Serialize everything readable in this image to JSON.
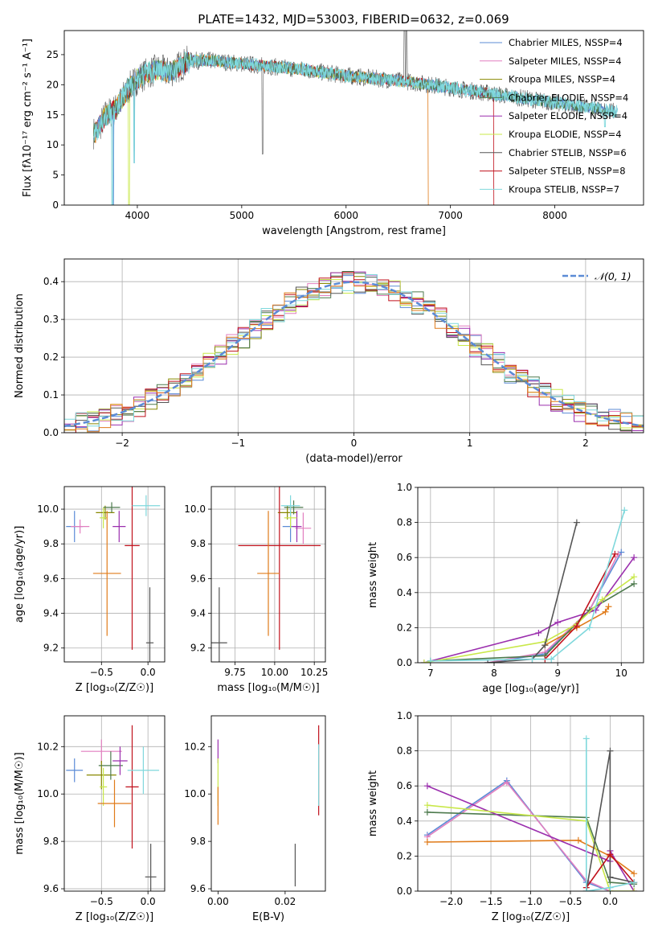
{
  "figure": {
    "title": "PLATE=1432, MJD=53003, FIBERID=0632, z=0.069"
  },
  "colors": {
    "chabrier_miles": "#5b8bd6",
    "salpeter_miles": "#e27fbf",
    "kroupa_miles": "#888800",
    "chabrier_elodie": "#4d7a4d",
    "salpeter_elodie": "#9b2fae",
    "kroupa_elodie": "#c9e84a",
    "chabrier_stelib": "#555555",
    "salpeter_stelib": "#c0111c",
    "kroupa_stelib": "#7fd8dc",
    "orange": "#e07b1a",
    "data": "#777777",
    "normal_curve": "#5b8bd6"
  },
  "chart_data": [
    {
      "id": "spectrum",
      "type": "line",
      "xlabel": "wavelength [Angstrom, rest frame]",
      "ylabel": "Flux [fλ10⁻¹⁷ erg cm⁻² s⁻¹ A⁻¹]",
      "xlim": [
        3300,
        8850
      ],
      "ylim": [
        0,
        29
      ],
      "xticks": [
        4000,
        5000,
        6000,
        7000,
        8000
      ],
      "yticks": [
        0,
        5,
        10,
        15,
        20,
        25
      ],
      "legend_position": "top-right",
      "legend": [
        "Chabrier MILES, NSSP=4",
        "Salpeter MILES, NSSP=4",
        "Kroupa MILES, NSSP=4",
        "Chabrier ELODIE, NSSP=4",
        "Salpeter ELODIE, NSSP=4",
        "Kroupa ELODIE, NSSP=4",
        "Chabrier STELIB, NSSP=6",
        "Salpeter STELIB, NSSP=8",
        "Kroupa STELIB, NSSP=7"
      ],
      "continuum": {
        "x": [
          3600,
          3700,
          3800,
          3900,
          4000,
          4100,
          4200,
          4300,
          4400,
          4500,
          4700,
          5000,
          5300,
          5600,
          6000,
          6300,
          6600,
          7000,
          7400,
          7800,
          8200,
          8600
        ],
        "y": [
          12,
          15,
          16,
          19,
          21,
          22,
          22.5,
          22,
          23,
          24,
          24,
          23.5,
          23,
          22.5,
          21.5,
          21,
          20.5,
          19.5,
          18.5,
          17.5,
          16.5,
          15.5
        ]
      }
    },
    {
      "id": "residuals",
      "type": "line",
      "xlabel": "(data-model)/error",
      "ylabel": "Normed distribution",
      "xlim": [
        -2.5,
        2.5
      ],
      "ylim": [
        0,
        0.46
      ],
      "xticks": [
        -2,
        -1,
        0,
        1,
        2
      ],
      "yticks": [
        0.0,
        0.1,
        0.2,
        0.3,
        0.4
      ],
      "grid": true,
      "legend_position": "top-right",
      "legend": [
        "𝒩(0, 1)"
      ],
      "bin_width": 0.1
    },
    {
      "id": "age_vs_Z",
      "type": "scatter",
      "xlabel": "Z [log₁₀(Z/Z☉)]",
      "ylabel": "age  [log₁₀(age/yr)]",
      "xlim": [
        -0.9,
        0.18
      ],
      "ylim": [
        9.12,
        10.13
      ],
      "xticks": [
        -0.5,
        0.0
      ],
      "yticks": [
        9.2,
        9.4,
        9.6,
        9.8,
        10.0
      ],
      "grid": true,
      "points": [
        {
          "x": -0.79,
          "y": 9.9,
          "xerr": 0.09,
          "yerr": 0.09,
          "c": "chabrier_miles"
        },
        {
          "x": -0.73,
          "y": 9.9,
          "xerr": 0.1,
          "yerr": 0.04,
          "c": "salpeter_miles"
        },
        {
          "x": -0.46,
          "y": 9.98,
          "xerr": 0.1,
          "yerr": 0.04,
          "c": "kroupa_miles"
        },
        {
          "x": -0.39,
          "y": 10.01,
          "xerr": 0.09,
          "yerr": 0.03,
          "c": "chabrier_elodie"
        },
        {
          "x": -0.31,
          "y": 9.9,
          "xerr": 0.07,
          "yerr": 0.09,
          "c": "salpeter_elodie"
        },
        {
          "x": -0.48,
          "y": 9.95,
          "xerr": 0.04,
          "yerr": 0.06,
          "c": "kroupa_elodie"
        },
        {
          "x": 0.02,
          "y": 9.23,
          "xerr": 0.04,
          "yerr": 0.32,
          "c": "chabrier_stelib"
        },
        {
          "x": -0.17,
          "y": 9.79,
          "xerr": 0.08,
          "yerr": 0.6,
          "c": "salpeter_stelib"
        },
        {
          "x": -0.02,
          "y": 10.02,
          "xerr": 0.15,
          "yerr": 0.06,
          "c": "kroupa_stelib"
        },
        {
          "x": -0.44,
          "y": 9.63,
          "xerr": 0.15,
          "yerr": 0.36,
          "c": "orange"
        }
      ]
    },
    {
      "id": "age_vs_mass",
      "type": "scatter",
      "xlabel": "mass [log₁₀(M/M☉)]",
      "ylabel": "",
      "xlim": [
        9.6,
        10.32
      ],
      "ylim": [
        9.12,
        10.13
      ],
      "xticks": [
        9.75,
        10.0,
        10.25
      ],
      "yticks": [
        9.2,
        9.4,
        9.6,
        9.8,
        10.0
      ],
      "grid": true,
      "points": [
        {
          "x": 10.1,
          "y": 9.9,
          "xerr": 0.05,
          "yerr": 0.09,
          "c": "chabrier_miles"
        },
        {
          "x": 10.18,
          "y": 9.89,
          "xerr": 0.05,
          "yerr": 0.09,
          "c": "salpeter_miles"
        },
        {
          "x": 10.08,
          "y": 9.98,
          "xerr": 0.06,
          "yerr": 0.04,
          "c": "kroupa_miles"
        },
        {
          "x": 10.12,
          "y": 10.01,
          "xerr": 0.06,
          "yerr": 0.04,
          "c": "chabrier_elodie"
        },
        {
          "x": 10.14,
          "y": 9.9,
          "xerr": 0.03,
          "yerr": 0.09,
          "c": "salpeter_elodie"
        },
        {
          "x": 10.1,
          "y": 9.95,
          "xerr": 0.04,
          "yerr": 0.06,
          "c": "kroupa_elodie"
        },
        {
          "x": 9.65,
          "y": 9.23,
          "xerr": 0.05,
          "yerr": 0.32,
          "c": "chabrier_stelib"
        },
        {
          "x": 10.03,
          "y": 9.79,
          "xerr": 0.26,
          "yerr": 0.6,
          "c": "salpeter_stelib"
        },
        {
          "x": 10.1,
          "y": 10.02,
          "xerr": 0.06,
          "yerr": 0.06,
          "c": "kroupa_stelib"
        },
        {
          "x": 9.96,
          "y": 9.63,
          "xerr": 0.07,
          "yerr": 0.36,
          "c": "orange"
        }
      ]
    },
    {
      "id": "weight_vs_age",
      "type": "line",
      "xlabel": "age  [log₁₀(age/yr)]",
      "ylabel": "mass weight",
      "xlim": [
        6.8,
        10.35
      ],
      "ylim": [
        0,
        1.0
      ],
      "xticks": [
        7,
        8,
        9,
        10
      ],
      "yticks": [
        0.0,
        0.2,
        0.4,
        0.6,
        0.8,
        1.0
      ],
      "grid": true,
      "series": [
        {
          "c": "chabrier_miles",
          "x": [
            7.9,
            8.8,
            9.5,
            10.0
          ],
          "y": [
            0.0,
            0.05,
            0.3,
            0.63
          ]
        },
        {
          "c": "salpeter_miles",
          "x": [
            7.9,
            8.8,
            9.5,
            9.95
          ],
          "y": [
            0.0,
            0.06,
            0.3,
            0.62
          ]
        },
        {
          "c": "orange",
          "x": [
            8.8,
            9.3,
            9.75,
            9.8
          ],
          "y": [
            0.1,
            0.2,
            0.29,
            0.32
          ]
        },
        {
          "c": "chabrier_elodie",
          "x": [
            7.0,
            8.8,
            9.5,
            10.2
          ],
          "y": [
            0.01,
            0.04,
            0.3,
            0.45
          ]
        },
        {
          "c": "salpeter_elodie",
          "x": [
            6.9,
            8.7,
            9.0,
            9.6,
            10.2
          ],
          "y": [
            0.0,
            0.17,
            0.23,
            0.3,
            0.6
          ]
        },
        {
          "c": "kroupa_elodie",
          "x": [
            6.9,
            8.8,
            9.3,
            9.7,
            10.2
          ],
          "y": [
            0.0,
            0.12,
            0.22,
            0.36,
            0.49
          ]
        },
        {
          "c": "chabrier_stelib",
          "x": [
            7.9,
            8.6,
            8.8,
            9.3
          ],
          "y": [
            0.0,
            0.02,
            0.1,
            0.8
          ]
        },
        {
          "c": "salpeter_stelib",
          "x": [
            8.8,
            9.3,
            9.9
          ],
          "y": [
            0.02,
            0.21,
            0.62
          ]
        },
        {
          "c": "kroupa_stelib",
          "x": [
            7.0,
            8.6,
            8.9,
            9.5,
            10.05
          ],
          "y": [
            0.01,
            0.02,
            0.02,
            0.2,
            0.87
          ]
        }
      ]
    },
    {
      "id": "mass_vs_Z",
      "type": "scatter",
      "xlabel": "Z [log₁₀(Z/Z☉)]",
      "ylabel": "mass [log₁₀(M/M☉)]",
      "xlim": [
        -0.9,
        0.18
      ],
      "ylim": [
        9.59,
        10.33
      ],
      "xticks": [
        -0.5,
        0.0
      ],
      "yticks": [
        9.6,
        9.8,
        10.0,
        10.2
      ],
      "grid": true,
      "points": [
        {
          "x": -0.79,
          "y": 10.1,
          "xerr": 0.09,
          "yerr": 0.05,
          "c": "chabrier_miles"
        },
        {
          "x": -0.5,
          "y": 10.18,
          "xerr": 0.22,
          "yerr": 0.05,
          "c": "salpeter_miles"
        },
        {
          "x": -0.5,
          "y": 10.08,
          "xerr": 0.16,
          "yerr": 0.06,
          "c": "kroupa_miles"
        },
        {
          "x": -0.4,
          "y": 10.12,
          "xerr": 0.13,
          "yerr": 0.06,
          "c": "chabrier_elodie"
        },
        {
          "x": -0.3,
          "y": 10.14,
          "xerr": 0.08,
          "yerr": 0.06,
          "c": "salpeter_elodie"
        },
        {
          "x": -0.48,
          "y": 10.03,
          "xerr": 0.04,
          "yerr": 0.08,
          "c": "kroupa_elodie"
        },
        {
          "x": 0.03,
          "y": 9.65,
          "xerr": 0.06,
          "yerr": 0.14,
          "c": "chabrier_stelib"
        },
        {
          "x": -0.17,
          "y": 10.03,
          "xerr": 0.07,
          "yerr": 0.26,
          "c": "salpeter_stelib"
        },
        {
          "x": -0.05,
          "y": 10.1,
          "xerr": 0.17,
          "yerr": 0.1,
          "c": "kroupa_stelib"
        },
        {
          "x": -0.36,
          "y": 9.96,
          "xerr": 0.18,
          "yerr": 0.1,
          "c": "orange"
        }
      ]
    },
    {
      "id": "mass_vs_ebv",
      "type": "scatter",
      "xlabel": "E(B-V)",
      "ylabel": "",
      "xlim": [
        -0.002,
        0.032
      ],
      "ylim": [
        9.59,
        10.33
      ],
      "xticks": [
        0.0,
        0.02
      ],
      "yticks": [
        9.6,
        9.8,
        10.0,
        10.2
      ],
      "grid": false,
      "points": [
        {
          "x": 0.0,
          "y": 10.18,
          "yerr": 0.05,
          "c": "salpeter_elodie"
        },
        {
          "x": 0.0,
          "y": 10.05,
          "yerr": 0.1,
          "c": "kroupa_elodie"
        },
        {
          "x": 0.0,
          "y": 9.95,
          "yerr": 0.08,
          "c": "orange"
        },
        {
          "x": 0.023,
          "y": 9.7,
          "yerr": 0.09,
          "c": "chabrier_stelib"
        },
        {
          "x": 0.03,
          "y": 10.1,
          "yerr": 0.19,
          "c": "salpeter_stelib"
        },
        {
          "x": 0.03,
          "y": 10.08,
          "yerr": 0.13,
          "c": "kroupa_stelib"
        }
      ]
    },
    {
      "id": "weight_vs_Z",
      "type": "line",
      "xlabel": "Z [log₁₀(Z/Z☉)]",
      "ylabel": "mass weight",
      "xlim": [
        -2.42,
        0.42
      ],
      "ylim": [
        0,
        1.0
      ],
      "xticks": [
        -2.0,
        -1.5,
        -1.0,
        -0.5,
        0.0
      ],
      "yticks": [
        0.0,
        0.2,
        0.4,
        0.6,
        0.8,
        1.0
      ],
      "grid": true,
      "series": [
        {
          "c": "chabrier_miles",
          "x": [
            -2.3,
            -1.3,
            -0.3,
            0.0
          ],
          "y": [
            0.32,
            0.63,
            0.05,
            0.0
          ]
        },
        {
          "c": "salpeter_miles",
          "x": [
            -2.3,
            -1.3,
            -0.3,
            0.0
          ],
          "y": [
            0.31,
            0.62,
            0.06,
            0.0
          ]
        },
        {
          "c": "orange",
          "x": [
            -2.3,
            -0.4,
            0.0,
            0.3
          ],
          "y": [
            0.28,
            0.29,
            0.2,
            0.1
          ]
        },
        {
          "c": "chabrier_elodie",
          "x": [
            -2.3,
            -0.3,
            0.0,
            0.3
          ],
          "y": [
            0.45,
            0.42,
            0.05,
            0.04
          ]
        },
        {
          "c": "salpeter_elodie",
          "x": [
            -2.3,
            0.0,
            0.0,
            0.3
          ],
          "y": [
            0.6,
            0.17,
            0.23,
            0.0
          ]
        },
        {
          "c": "kroupa_elodie",
          "x": [
            -2.3,
            -0.3,
            0.0,
            0.3
          ],
          "y": [
            0.49,
            0.4,
            0.0,
            0.0
          ]
        },
        {
          "c": "chabrier_stelib",
          "x": [
            -0.3,
            0.0,
            0.0,
            0.3
          ],
          "y": [
            0.0,
            0.8,
            0.08,
            0.05
          ]
        },
        {
          "c": "salpeter_stelib",
          "x": [
            -0.3,
            0.0,
            0.3
          ],
          "y": [
            0.02,
            0.21,
            0.05
          ]
        },
        {
          "c": "kroupa_stelib",
          "x": [
            -0.3,
            -0.3,
            0.0,
            0.3
          ],
          "y": [
            0.87,
            0.0,
            0.02,
            0.05
          ]
        }
      ]
    }
  ]
}
